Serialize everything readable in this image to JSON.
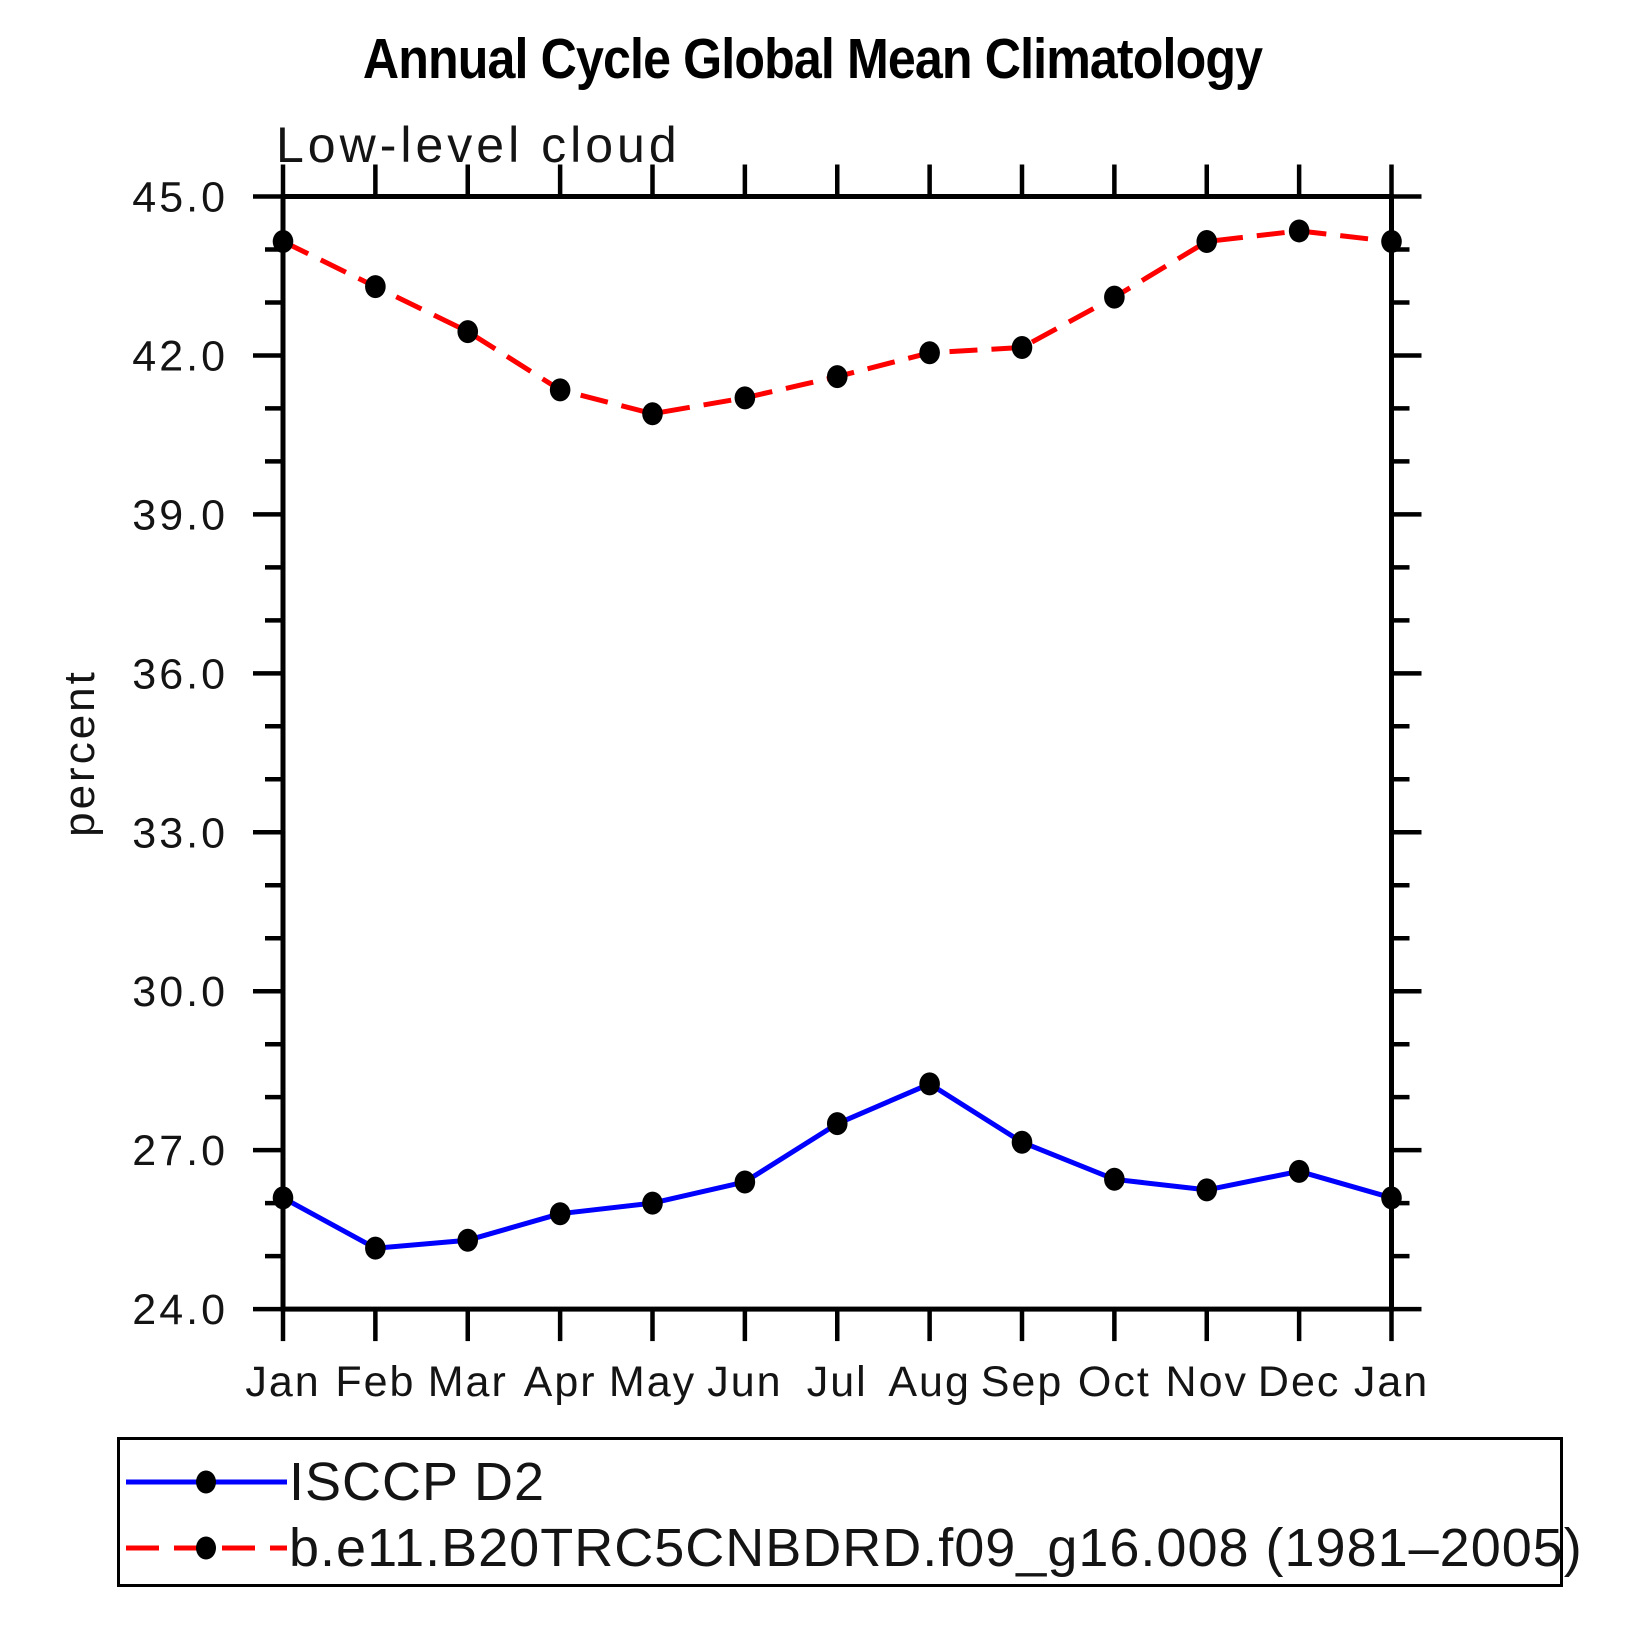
{
  "header": {
    "title": "Annual Cycle Global Mean Climatology",
    "subtitle": "Low-level cloud"
  },
  "axes": {
    "y_label": "percent",
    "y_tick_labels": [
      "45.0",
      "42.0",
      "39.0",
      "36.0",
      "33.0",
      "30.0",
      "27.0",
      "24.0"
    ]
  },
  "colors": {
    "isccp_line": "#0000ff",
    "model_line": "#ff0000",
    "marker": "#000000",
    "axis": "#000000"
  },
  "chart_data": {
    "type": "line",
    "title": "Annual Cycle Global Mean Climatology",
    "subtitle": "Low-level cloud",
    "xlabel": "",
    "ylabel": "percent",
    "ylim": [
      24.0,
      45.0
    ],
    "y_major_ticks": [
      45.0,
      42.0,
      39.0,
      36.0,
      33.0,
      30.0,
      27.0,
      24.0
    ],
    "y_minor_step": 1.0,
    "grid": false,
    "legend_position": "bottom",
    "categories": [
      "Jan",
      "Feb",
      "Mar",
      "Apr",
      "May",
      "Jun",
      "Jul",
      "Aug",
      "Sep",
      "Oct",
      "Nov",
      "Dec",
      "Jan"
    ],
    "series": [
      {
        "name": "ISCCP D2",
        "color": "#0000ff",
        "line_style": "solid",
        "marker": "filled-black-circle",
        "values": [
          26.1,
          25.15,
          25.3,
          25.8,
          26.0,
          26.4,
          27.5,
          28.25,
          27.15,
          26.45,
          26.25,
          26.6,
          26.1
        ]
      },
      {
        "name": "b.e11.B20TRC5CNBDRD.f09_g16.008 (1981–2005)",
        "color": "#ff0000",
        "line_style": "dashed",
        "marker": "filled-black-circle",
        "values": [
          44.15,
          43.3,
          42.45,
          41.35,
          40.9,
          41.2,
          41.6,
          42.05,
          42.15,
          43.1,
          44.15,
          44.35,
          44.15
        ]
      }
    ]
  }
}
